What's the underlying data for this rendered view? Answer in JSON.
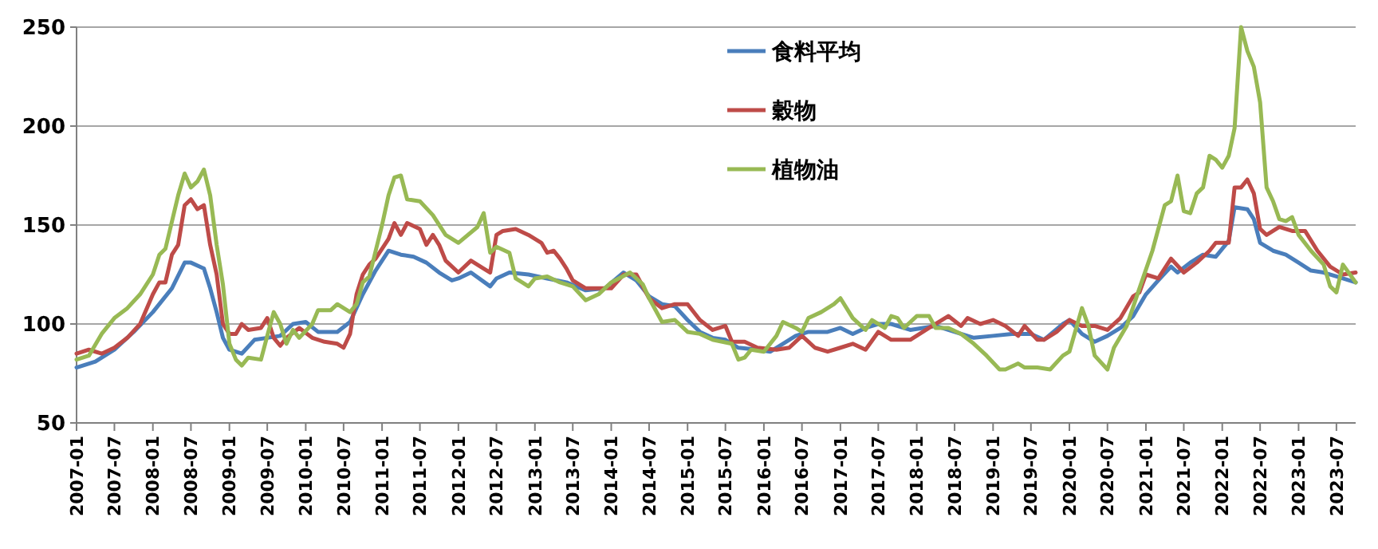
{
  "chart_data": {
    "type": "line",
    "ylim": [
      50,
      250
    ],
    "yticks": [
      50,
      100,
      150,
      200,
      250
    ],
    "xlim": [
      "2007-01",
      "2023-10"
    ],
    "xticks": [
      "2007-01",
      "2007-07",
      "2008-01",
      "2008-07",
      "2009-01",
      "2009-07",
      "2010-01",
      "2010-07",
      "2011-01",
      "2011-07",
      "2012-01",
      "2012-07",
      "2013-01",
      "2013-07",
      "2014-01",
      "2014-07",
      "2015-01",
      "2015-07",
      "2016-01",
      "2016-07",
      "2017-01",
      "2017-07",
      "2018-01",
      "2018-07",
      "2019-01",
      "2019-07",
      "2020-01",
      "2020-07",
      "2021-01",
      "2021-07",
      "2022-01",
      "2022-07",
      "2023-01",
      "2023-07"
    ],
    "grid": "y",
    "legend": "top",
    "marker": "none",
    "line_style": "solid",
    "series": [
      {
        "name": "食料平均",
        "color": "#4a7ebb",
        "x": [
          "2007-01",
          "2007-04",
          "2007-07",
          "2007-10",
          "2008-01",
          "2008-04",
          "2008-06",
          "2008-07",
          "2008-09",
          "2008-10",
          "2008-11",
          "2008-12",
          "2009-01",
          "2009-03",
          "2009-05",
          "2009-07",
          "2009-09",
          "2009-11",
          "2010-01",
          "2010-03",
          "2010-06",
          "2010-08",
          "2010-10",
          "2010-12",
          "2011-02",
          "2011-04",
          "2011-06",
          "2011-08",
          "2011-10",
          "2011-12",
          "2012-01",
          "2012-03",
          "2012-06",
          "2012-07",
          "2012-09",
          "2012-12",
          "2013-03",
          "2013-06",
          "2013-09",
          "2013-12",
          "2014-03",
          "2014-05",
          "2014-07",
          "2014-09",
          "2014-11",
          "2015-01",
          "2015-03",
          "2015-05",
          "2015-07",
          "2015-09",
          "2015-12",
          "2016-02",
          "2016-04",
          "2016-06",
          "2016-08",
          "2016-11",
          "2017-01",
          "2017-03",
          "2017-05",
          "2017-07",
          "2017-09",
          "2017-12",
          "2018-04",
          "2018-07",
          "2018-10",
          "2019-01",
          "2019-04",
          "2019-07",
          "2019-09",
          "2019-12",
          "2020-01",
          "2020-03",
          "2020-05",
          "2020-07",
          "2020-09",
          "2020-11",
          "2021-01",
          "2021-03",
          "2021-05",
          "2021-06",
          "2021-08",
          "2021-10",
          "2021-12",
          "2022-02",
          "2022-03",
          "2022-05",
          "2022-06",
          "2022-07",
          "2022-09",
          "2022-11",
          "2023-01",
          "2023-03",
          "2023-05",
          "2023-07",
          "2023-10"
        ],
        "values": [
          78,
          81,
          87,
          96,
          106,
          118,
          131,
          131,
          128,
          118,
          106,
          93,
          87,
          85,
          92,
          93,
          94,
          100,
          101,
          96,
          96,
          101,
          115,
          127,
          137,
          135,
          134,
          131,
          126,
          122,
          123,
          126,
          119,
          123,
          126,
          125,
          123,
          121,
          117,
          118,
          126,
          122,
          114,
          110,
          109,
          102,
          96,
          93,
          92,
          88,
          87,
          86,
          90,
          94,
          96,
          96,
          98,
          95,
          98,
          100,
          100,
          97,
          99,
          96,
          93,
          94,
          95,
          95,
          92,
          100,
          102,
          95,
          91,
          94,
          98,
          104,
          115,
          122,
          129,
          126,
          131,
          135,
          134,
          142,
          159,
          158,
          153,
          141,
          137,
          135,
          131,
          127,
          126,
          124,
          121
        ]
      },
      {
        "name": "穀物",
        "color": "#be4b48",
        "x": [
          "2007-01",
          "2007-03",
          "2007-05",
          "2007-07",
          "2007-09",
          "2007-11",
          "2008-01",
          "2008-02",
          "2008-03",
          "2008-04",
          "2008-05",
          "2008-06",
          "2008-07",
          "2008-08",
          "2008-09",
          "2008-10",
          "2008-11",
          "2008-12",
          "2009-01",
          "2009-02",
          "2009-03",
          "2009-04",
          "2009-06",
          "2009-07",
          "2009-08",
          "2009-09",
          "2009-10",
          "2009-12",
          "2010-02",
          "2010-04",
          "2010-06",
          "2010-07",
          "2010-08",
          "2010-09",
          "2010-10",
          "2010-11",
          "2010-12",
          "2011-02",
          "2011-03",
          "2011-04",
          "2011-05",
          "2011-07",
          "2011-08",
          "2011-09",
          "2011-10",
          "2011-11",
          "2012-01",
          "2012-03",
          "2012-05",
          "2012-06",
          "2012-07",
          "2012-08",
          "2012-10",
          "2012-12",
          "2013-02",
          "2013-03",
          "2013-04",
          "2013-05",
          "2013-06",
          "2013-07",
          "2013-09",
          "2013-11",
          "2014-01",
          "2014-03",
          "2014-05",
          "2014-07",
          "2014-09",
          "2014-11",
          "2015-01",
          "2015-03",
          "2015-05",
          "2015-07",
          "2015-08",
          "2015-10",
          "2015-12",
          "2016-03",
          "2016-05",
          "2016-07",
          "2016-09",
          "2016-11",
          "2017-01",
          "2017-03",
          "2017-05",
          "2017-07",
          "2017-09",
          "2017-12",
          "2018-03",
          "2018-05",
          "2018-06",
          "2018-08",
          "2018-09",
          "2018-11",
          "2019-01",
          "2019-03",
          "2019-05",
          "2019-06",
          "2019-08",
          "2019-09",
          "2019-11",
          "2020-01",
          "2020-03",
          "2020-05",
          "2020-07",
          "2020-09",
          "2020-11",
          "2020-12",
          "2021-01",
          "2021-03",
          "2021-05",
          "2021-07",
          "2021-09",
          "2021-11",
          "2021-12",
          "2022-02",
          "2022-03",
          "2022-04",
          "2022-05",
          "2022-06",
          "2022-07",
          "2022-08",
          "2022-10",
          "2022-12",
          "2023-02",
          "2023-04",
          "2023-06",
          "2023-08",
          "2023-10"
        ],
        "values": [
          85,
          87,
          85,
          88,
          93,
          100,
          115,
          121,
          121,
          135,
          140,
          160,
          163,
          158,
          160,
          140,
          125,
          100,
          95,
          95,
          100,
          97,
          98,
          103,
          93,
          89,
          93,
          98,
          93,
          91,
          90,
          88,
          95,
          115,
          125,
          130,
          133,
          143,
          151,
          145,
          151,
          148,
          140,
          145,
          140,
          132,
          126,
          132,
          128,
          126,
          145,
          147,
          148,
          145,
          141,
          136,
          137,
          133,
          128,
          122,
          118,
          118,
          118,
          125,
          125,
          113,
          108,
          110,
          110,
          102,
          97,
          99,
          91,
          91,
          88,
          87,
          88,
          94,
          88,
          86,
          88,
          90,
          87,
          96,
          92,
          92,
          98,
          102,
          104,
          99,
          103,
          100,
          102,
          99,
          94,
          99,
          92,
          92,
          96,
          102,
          99,
          99,
          97,
          103,
          114,
          116,
          125,
          123,
          133,
          126,
          131,
          137,
          141,
          141,
          169,
          169,
          173,
          166,
          148,
          145,
          149,
          147,
          147,
          137,
          129,
          125,
          126
        ]
      },
      {
        "name": "植物油",
        "color": "#98b954",
        "x": [
          "2007-01",
          "2007-03",
          "2007-05",
          "2007-07",
          "2007-09",
          "2007-11",
          "2008-01",
          "2008-02",
          "2008-03",
          "2008-05",
          "2008-06",
          "2008-07",
          "2008-08",
          "2008-09",
          "2008-10",
          "2008-11",
          "2008-12",
          "2009-01",
          "2009-02",
          "2009-03",
          "2009-04",
          "2009-06",
          "2009-07",
          "2009-08",
          "2009-09",
          "2009-10",
          "2009-11",
          "2009-12",
          "2010-02",
          "2010-03",
          "2010-05",
          "2010-06",
          "2010-08",
          "2010-09",
          "2010-10",
          "2010-11",
          "2011-01",
          "2011-02",
          "2011-03",
          "2011-04",
          "2011-05",
          "2011-07",
          "2011-09",
          "2011-11",
          "2012-01",
          "2012-04",
          "2012-05",
          "2012-06",
          "2012-07",
          "2012-09",
          "2012-10",
          "2012-11",
          "2012-12",
          "2013-01",
          "2013-03",
          "2013-05",
          "2013-07",
          "2013-09",
          "2013-11",
          "2014-01",
          "2014-04",
          "2014-06",
          "2014-07",
          "2014-09",
          "2014-11",
          "2015-01",
          "2015-03",
          "2015-05",
          "2015-08",
          "2015-09",
          "2015-10",
          "2015-11",
          "2016-01",
          "2016-03",
          "2016-04",
          "2016-06",
          "2016-07",
          "2016-08",
          "2016-10",
          "2016-12",
          "2017-01",
          "2017-03",
          "2017-05",
          "2017-06",
          "2017-08",
          "2017-09",
          "2017-10",
          "2017-11",
          "2018-01",
          "2018-03",
          "2018-04",
          "2018-06",
          "2018-08",
          "2018-10",
          "2018-12",
          "2019-02",
          "2019-03",
          "2019-05",
          "2019-06",
          "2019-08",
          "2019-10",
          "2019-12",
          "2020-01",
          "2020-03",
          "2020-04",
          "2020-05",
          "2020-07",
          "2020-08",
          "2020-10",
          "2020-12",
          "2021-02",
          "2021-04",
          "2021-05",
          "2021-06",
          "2021-07",
          "2021-08",
          "2021-09",
          "2021-10",
          "2021-11",
          "2021-12",
          "2022-01",
          "2022-02",
          "2022-03",
          "2022-04",
          "2022-05",
          "2022-06",
          "2022-07",
          "2022-08",
          "2022-09",
          "2022-10",
          "2022-11",
          "2022-12",
          "2023-01",
          "2023-03",
          "2023-05",
          "2023-06",
          "2023-07",
          "2023-08",
          "2023-10"
        ],
        "values": [
          82,
          84,
          95,
          103,
          108,
          115,
          125,
          135,
          138,
          165,
          176,
          169,
          172,
          178,
          165,
          140,
          120,
          90,
          82,
          79,
          83,
          82,
          94,
          106,
          100,
          90,
          97,
          93,
          100,
          107,
          107,
          110,
          106,
          110,
          121,
          124,
          150,
          165,
          174,
          175,
          163,
          162,
          155,
          145,
          141,
          149,
          156,
          136,
          139,
          136,
          123,
          121,
          119,
          123,
          124,
          121,
          119,
          112,
          115,
          121,
          126,
          120,
          113,
          101,
          102,
          96,
          95,
          92,
          90,
          82,
          83,
          87,
          86,
          94,
          101,
          98,
          96,
          103,
          106,
          110,
          113,
          103,
          97,
          102,
          98,
          104,
          103,
          98,
          104,
          104,
          98,
          98,
          95,
          90,
          84,
          77,
          77,
          80,
          78,
          78,
          77,
          84,
          86,
          108,
          99,
          84,
          77,
          88,
          99,
          118,
          137,
          160,
          162,
          175,
          157,
          156,
          166,
          169,
          185,
          183,
          179,
          185,
          199,
          250,
          238,
          230,
          212,
          169,
          162,
          153,
          152,
          154,
          145,
          137,
          130,
          119,
          116,
          130,
          121
        ]
      }
    ]
  }
}
